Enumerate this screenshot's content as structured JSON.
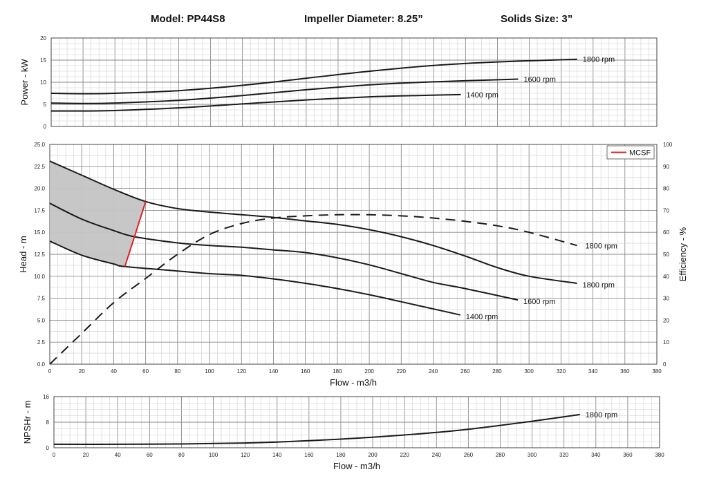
{
  "header": {
    "model": "Model: PP44S8",
    "impeller": "Impeller Diameter: 8.25”",
    "solids": "Solids Size: 3”"
  },
  "colors": {
    "curve": "#1a1a1a",
    "mcsf": "#e02020",
    "shade": "#c4c4c4",
    "grid_major": "#8a8a8a",
    "grid_minor": "#cfcfcf"
  },
  "chart_data": [
    {
      "id": "power",
      "type": "line",
      "xlim": [
        0,
        380
      ],
      "ylim": [
        0,
        20
      ],
      "xticks": [],
      "yticks": [
        "0",
        "5",
        "10",
        "15",
        "20"
      ],
      "ylabel": "Power - kW",
      "xlabel": "",
      "grid": true,
      "series": [
        {
          "name": "1800 rpm",
          "x": [
            0,
            20,
            40,
            80,
            120,
            160,
            200,
            240,
            280,
            330
          ],
          "y": [
            7.5,
            7.4,
            7.5,
            8.1,
            9.3,
            10.9,
            12.5,
            13.8,
            14.6,
            15.2
          ]
        },
        {
          "name": "1600 rpm",
          "x": [
            0,
            20,
            40,
            80,
            120,
            160,
            200,
            240,
            293
          ],
          "y": [
            5.3,
            5.2,
            5.3,
            5.9,
            7.0,
            8.3,
            9.4,
            10.1,
            10.7
          ]
        },
        {
          "name": "1400 rpm",
          "x": [
            0,
            20,
            40,
            80,
            120,
            160,
            200,
            230,
            257
          ],
          "y": [
            3.5,
            3.5,
            3.6,
            4.2,
            5.1,
            6.0,
            6.7,
            7.0,
            7.2
          ]
        }
      ]
    },
    {
      "id": "head",
      "type": "line",
      "xlim": [
        0,
        380
      ],
      "ylim": [
        0,
        25
      ],
      "y2lim": [
        0,
        100
      ],
      "xticks": [
        "0",
        "20",
        "40",
        "60",
        "80",
        "100",
        "120",
        "140",
        "160",
        "180",
        "200",
        "220",
        "240",
        "260",
        "280",
        "300",
        "320",
        "340",
        "360",
        "380"
      ],
      "yticks": [
        "0.0",
        "2.5",
        "5.0",
        "7.5",
        "10.0",
        "12.5",
        "15.0",
        "17.5",
        "20.0",
        "22.5",
        "25.0"
      ],
      "y2ticks": [
        "0",
        "10",
        "20",
        "30",
        "40",
        "50",
        "60",
        "70",
        "80",
        "90",
        "100"
      ],
      "xlabel": "Flow - m3/h",
      "ylabel": "Head - m",
      "y2label": "Efficiency - %",
      "legend": {
        "label": "MCSF",
        "placement": "top-right"
      },
      "grid": true,
      "series": [
        {
          "name": "1800 rpm",
          "x": [
            0,
            20,
            40,
            60,
            80,
            100,
            120,
            140,
            160,
            180,
            200,
            220,
            240,
            260,
            280,
            300,
            330
          ],
          "y": [
            23.1,
            21.5,
            19.9,
            18.5,
            17.7,
            17.3,
            17.0,
            16.7,
            16.3,
            15.9,
            15.3,
            14.5,
            13.5,
            12.3,
            11.0,
            10.0,
            9.2
          ]
        },
        {
          "name": "1600 rpm",
          "x": [
            0,
            20,
            40,
            53,
            80,
            100,
            120,
            140,
            160,
            180,
            200,
            220,
            240,
            260,
            293
          ],
          "y": [
            18.3,
            16.5,
            15.2,
            14.5,
            13.8,
            13.5,
            13.3,
            13.0,
            12.7,
            12.1,
            11.3,
            10.3,
            9.3,
            8.6,
            7.3
          ]
        },
        {
          "name": "1400 rpm",
          "x": [
            0,
            20,
            40,
            47,
            80,
            100,
            120,
            140,
            160,
            180,
            200,
            220,
            257
          ],
          "y": [
            14.0,
            12.4,
            11.4,
            11.1,
            10.6,
            10.3,
            10.1,
            9.7,
            9.2,
            8.6,
            7.9,
            7.1,
            5.6
          ]
        }
      ],
      "efficiency": {
        "name": "1800 rpm",
        "x": [
          0,
          20,
          40,
          60,
          80,
          100,
          120,
          140,
          160,
          180,
          200,
          220,
          240,
          260,
          280,
          300,
          330
        ],
        "y": [
          0,
          14,
          28,
          39,
          50,
          59,
          64,
          66.5,
          67.5,
          68,
          68,
          67.5,
          66.5,
          65,
          63,
          60,
          54
        ]
      },
      "mcsf": {
        "x": [
          60,
          53,
          47
        ],
        "y": [
          18.5,
          14.5,
          11.1
        ]
      }
    },
    {
      "id": "npshr",
      "type": "line",
      "xlim": [
        0,
        380
      ],
      "ylim": [
        0,
        16
      ],
      "xticks": [
        "0",
        "20",
        "40",
        "60",
        "80",
        "100",
        "120",
        "140",
        "160",
        "180",
        "200",
        "220",
        "240",
        "260",
        "280",
        "300",
        "320",
        "340",
        "360",
        "380"
      ],
      "yticks": [
        "0",
        "8",
        "16"
      ],
      "xlabel": "Flow - m3/h",
      "ylabel": "NPSHr - m",
      "grid": true,
      "series": [
        {
          "name": "1800 rpm",
          "x": [
            0,
            40,
            80,
            120,
            140,
            160,
            180,
            200,
            220,
            240,
            260,
            280,
            300,
            330
          ],
          "y": [
            1.1,
            1.1,
            1.2,
            1.5,
            1.8,
            2.2,
            2.7,
            3.3,
            4.0,
            4.8,
            5.8,
            7.0,
            8.3,
            10.4
          ]
        }
      ]
    }
  ]
}
